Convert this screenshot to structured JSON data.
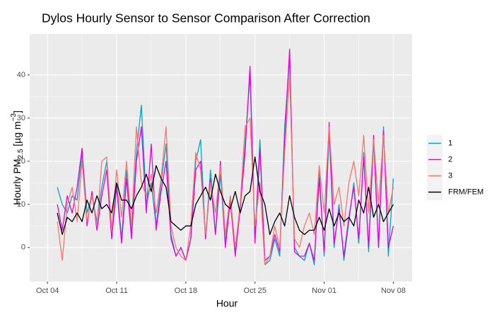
{
  "chart_data": {
    "type": "line",
    "title": "Dylos Hourly Sensor to Sensor Comparison After Correction",
    "x_label": "Hour",
    "y_label": {
      "main": "Hourly PM",
      "sub": "2.5",
      "unit": " [µg m",
      "sup": "−3",
      "end": "]"
    },
    "xlim": [
      -1.8,
      36.9
    ],
    "xticks": [
      {
        "value": 0,
        "label": "Oct 04"
      },
      {
        "value": 7,
        "label": "Oct 11"
      },
      {
        "value": 14,
        "label": "Oct 18"
      },
      {
        "value": 21,
        "label": "Oct 25"
      },
      {
        "value": 28,
        "label": "Nov 01"
      },
      {
        "value": 35,
        "label": "Nov 08"
      }
    ],
    "ylim": [
      -7.9,
      49.5
    ],
    "yticks": [
      0,
      10,
      20,
      30,
      40
    ],
    "grid": true,
    "legend": "right",
    "x": [
      1,
      1.5,
      2,
      2.5,
      3,
      3.5,
      4,
      4.5,
      5,
      5.5,
      6,
      6.5,
      7,
      7.5,
      8,
      8.5,
      9,
      9.5,
      10,
      10.5,
      11,
      11.5,
      12,
      12.5,
      13,
      13.5,
      14,
      14.5,
      15,
      15.5,
      16,
      16.5,
      17,
      17.5,
      18,
      18.5,
      19,
      19.5,
      20,
      20.5,
      21,
      21.5,
      22,
      22.5,
      23,
      23.5,
      24,
      24.5,
      25,
      25.5,
      26,
      26.5,
      27,
      27.5,
      28,
      28.5,
      29,
      29.5,
      30,
      30.5,
      31,
      31.5,
      32,
      32.5,
      33,
      33.5,
      34,
      34.5,
      35
    ],
    "series": [
      {
        "name": "1",
        "color": "#00a5c0",
        "values": [
          14,
          10,
          8,
          12,
          11,
          22,
          8,
          12,
          6,
          14,
          20,
          4,
          15,
          2,
          18,
          3,
          22,
          33,
          10,
          15,
          5,
          15,
          24,
          3,
          -2,
          0,
          -3,
          2,
          20,
          25,
          2,
          18,
          3,
          17,
          1,
          12,
          -1,
          10,
          24,
          40,
          2,
          25,
          -4,
          -3,
          2,
          -2,
          28,
          44,
          0,
          -2,
          -3,
          1,
          -4,
          18,
          -2,
          27,
          0,
          10,
          -3,
          6,
          15,
          1,
          22,
          -1,
          25,
          0,
          28,
          -2,
          16
        ]
      },
      {
        "name": "2",
        "color": "#e600e6",
        "values": [
          10,
          4,
          12,
          8,
          14,
          23,
          5,
          13,
          4,
          12,
          18,
          2,
          14,
          1,
          16,
          2,
          20,
          28,
          8,
          24,
          4,
          13,
          20,
          2,
          -2,
          0,
          -3,
          2,
          18,
          20,
          2,
          16,
          3,
          20,
          0,
          11,
          -2,
          9,
          22,
          42,
          1,
          23,
          -3,
          -2,
          3,
          -1,
          25,
          46,
          -1,
          -2,
          -2,
          1,
          -3,
          16,
          -1,
          29,
          1,
          9,
          -2,
          7,
          14,
          2,
          21,
          0,
          26,
          0,
          27,
          0,
          5
        ]
      },
      {
        "name": "3",
        "color": "#f8766d",
        "values": [
          6,
          -3,
          10,
          14,
          6,
          20,
          6,
          12,
          5,
          20,
          21,
          4,
          18,
          7,
          20,
          5,
          28,
          15,
          12,
          17,
          8,
          16,
          28,
          5,
          0,
          -2,
          -3,
          5,
          22,
          18,
          3,
          15,
          8,
          19,
          3,
          12,
          0,
          10,
          28,
          30,
          5,
          15,
          -4,
          -2,
          5,
          0,
          22,
          40,
          2,
          0,
          5,
          8,
          3,
          19,
          8,
          28,
          10,
          14,
          5,
          15,
          20,
          12,
          26,
          8,
          25,
          10,
          26,
          8,
          14
        ]
      },
      {
        "name": "FRM/FEM",
        "color": "#000000",
        "values": [
          8,
          3,
          7,
          6,
          8,
          6,
          11,
          8,
          12,
          9,
          10,
          8,
          15,
          11,
          11,
          9,
          12,
          14,
          17,
          13,
          19,
          16,
          14,
          6,
          5,
          4,
          5,
          5,
          10,
          12,
          14,
          11,
          17,
          13,
          10,
          9,
          13,
          8,
          12,
          13,
          21,
          13,
          10,
          3,
          6,
          8,
          5,
          12,
          7,
          4,
          3,
          4,
          4,
          7,
          4,
          9,
          5,
          8,
          6,
          7,
          5,
          11,
          8,
          14,
          7,
          10,
          6,
          8,
          10
        ]
      }
    ]
  }
}
